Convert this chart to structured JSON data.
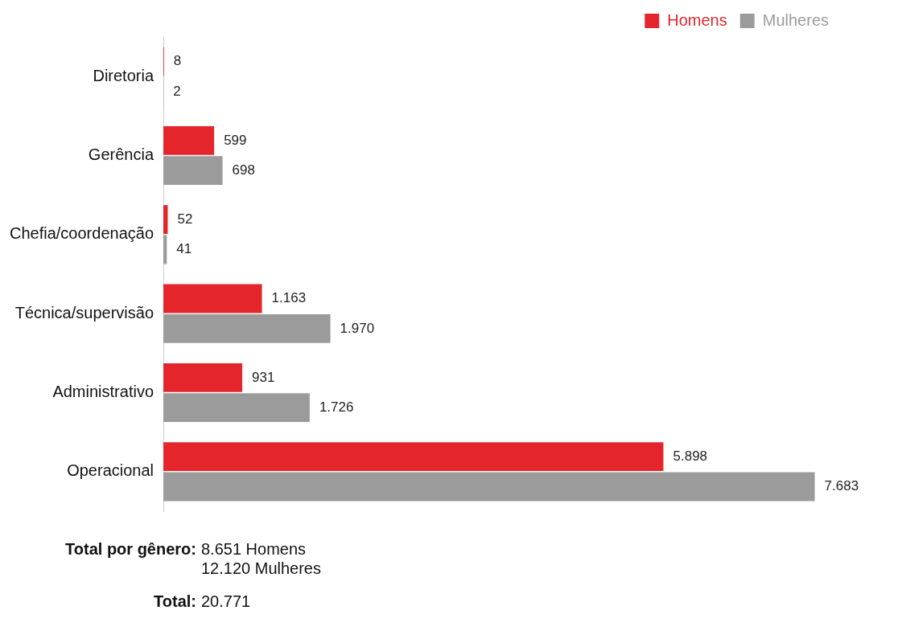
{
  "chart_data": {
    "type": "bar",
    "orientation": "horizontal",
    "categories": [
      "Diretoria",
      "Gerência",
      "Chefia/coordenação",
      "Técnica/supervisão",
      "Administrativo",
      "Operacional"
    ],
    "series": [
      {
        "name": "Homens",
        "color": "#e4262c",
        "values": [
          8,
          599,
          52,
          1163,
          931,
          5898
        ],
        "value_labels": [
          "8",
          "599",
          "52",
          "1.163",
          "931",
          "5.898"
        ]
      },
      {
        "name": "Mulheres",
        "color": "#9b9b9b",
        "values": [
          2,
          698,
          41,
          1970,
          1726,
          7683
        ],
        "value_labels": [
          "2",
          "698",
          "41",
          "1.970",
          "1.726",
          "7.683"
        ]
      }
    ],
    "legend": "top right",
    "tick_labels": "y",
    "grid": false,
    "annotations": [
      "Total por gênero: 8.651 Homens",
      "12.120 Mulheres",
      "Total: 20.771"
    ]
  }
}
